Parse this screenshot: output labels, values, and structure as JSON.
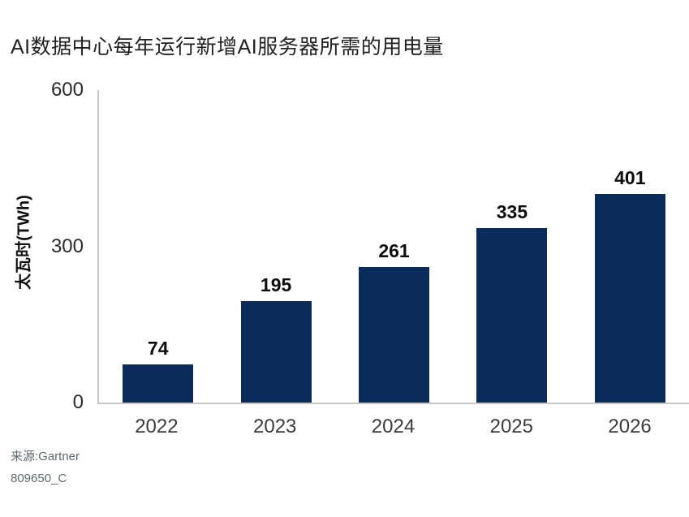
{
  "header": {
    "title": "AI数据中心每年运行新增AI服务器所需的用电量"
  },
  "footer": {
    "source_line1": "来源:Gartner",
    "source_line2": "809650_C"
  },
  "chart_data": {
    "type": "bar",
    "title": "AI数据中心每年运行新增AI服务器所需的用电量",
    "categories": [
      "2022",
      "2023",
      "2024",
      "2025",
      "2026"
    ],
    "values": [
      74,
      195,
      261,
      335,
      401
    ],
    "xlabel": "",
    "ylabel": "太瓦时(TWh)",
    "ylim": [
      0,
      600
    ],
    "yticks": [
      0,
      300,
      600
    ],
    "grid": false,
    "legend": false,
    "value_labels": true,
    "bar_color": "#0b2c5a",
    "value_label_color": "#0d0d0d",
    "axis_line_color": "#c8c8c8",
    "tick_label_color": "#2b2b2b",
    "category_label_color": "#3b3b3b",
    "source_text_color": "#5d6a70"
  }
}
